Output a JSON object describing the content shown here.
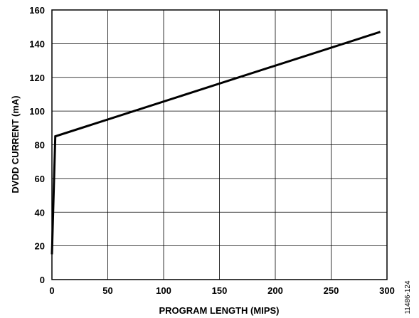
{
  "chart_data": {
    "type": "line",
    "title": "",
    "xlabel": "PROGRAM LENGTH (MIPS)",
    "ylabel": "DVDD CURRENT (mA)",
    "xlim": [
      0,
      300
    ],
    "ylim": [
      0,
      160
    ],
    "xticks": [
      0,
      50,
      100,
      150,
      200,
      250,
      300
    ],
    "yticks": [
      0,
      20,
      40,
      60,
      80,
      100,
      120,
      140,
      160
    ],
    "grid": true,
    "legend": "none",
    "series": [
      {
        "x": [
          0,
          3,
          294
        ],
        "y": [
          15,
          85,
          147
        ]
      }
    ],
    "line_color": "#000000"
  },
  "figure_id": "11486-124"
}
